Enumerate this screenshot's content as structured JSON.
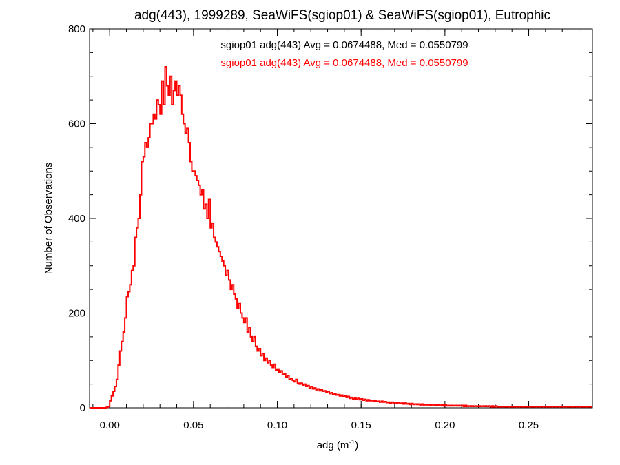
{
  "chart_data": {
    "type": "histogram",
    "title": "adg(443), 1999289, SeaWiFS(sgiop01) & SeaWiFS(sgiop01), Eutrophic",
    "xlabel": "adg (m",
    "xlabel_sup": "-1",
    "xlabel_close": ")",
    "ylabel": "Number of Observations",
    "xlim": [
      -0.012,
      0.288
    ],
    "ylim": [
      0,
      800
    ],
    "xticks": [
      0.0,
      0.05,
      0.1,
      0.15,
      0.2,
      0.25
    ],
    "xtick_labels": [
      "0.00",
      "0.05",
      "0.10",
      "0.15",
      "0.20",
      "0.25"
    ],
    "yticks": [
      0,
      200,
      400,
      600,
      800
    ],
    "ytick_labels": [
      "0",
      "200",
      "400",
      "600",
      "800"
    ],
    "grid": false,
    "legend": {
      "placement": "top-center",
      "entries": [
        {
          "text": "sgiop01 adg(443) Avg = 0.0674488, Med = 0.0550799",
          "color": "#000000"
        },
        {
          "text": "sgiop01 adg(443) Avg = 0.0674488, Med = 0.0550799",
          "color": "#ff0000"
        }
      ]
    },
    "series": [
      {
        "color": "#ff0000",
        "bin_width": 0.001,
        "bin_start": -0.012,
        "values": [
          0,
          0,
          0,
          0,
          0,
          0,
          0,
          0,
          0,
          0,
          1,
          3,
          15,
          25,
          35,
          45,
          60,
          90,
          120,
          140,
          160,
          190,
          235,
          245,
          260,
          290,
          300,
          360,
          380,
          400,
          450,
          520,
          530,
          560,
          550,
          570,
          600,
          600,
          620,
          610,
          650,
          640,
          620,
          690,
          640,
          720,
          680,
          660,
          700,
          640,
          670,
          690,
          660,
          680,
          660,
          620,
          600,
          580,
          590,
          560,
          520,
          500,
          500,
          490,
          480,
          470,
          450,
          460,
          420,
          430,
          400,
          440,
          380,
          390,
          360,
          350,
          340,
          330,
          320,
          310,
          300,
          280,
          290,
          270,
          250,
          260,
          240,
          230,
          210,
          220,
          200,
          190,
          180,
          190,
          160,
          170,
          150,
          140,
          150,
          130,
          120,
          125,
          110,
          115,
          100,
          105,
          95,
          100,
          90,
          85,
          92,
          80,
          82,
          75,
          78,
          70,
          72,
          65,
          68,
          60,
          62,
          58,
          55,
          60,
          52,
          50,
          52,
          48,
          50,
          45,
          47,
          42,
          45,
          40,
          42,
          38,
          40,
          36,
          38,
          35,
          36,
          33,
          35,
          30,
          32,
          28,
          30,
          27,
          28,
          25,
          27,
          24,
          25,
          22,
          24,
          20,
          22,
          19,
          21,
          18,
          20,
          17,
          19,
          16,
          18,
          15,
          17,
          15,
          16,
          14,
          15,
          13,
          14,
          12,
          14,
          12,
          13,
          11,
          12,
          10,
          12,
          10,
          11,
          9,
          11,
          9,
          10,
          8,
          10,
          8,
          9,
          7,
          9,
          7,
          8,
          7,
          8,
          6,
          8,
          6,
          7,
          6,
          7,
          5,
          7,
          5,
          6,
          5,
          6,
          5,
          6,
          4,
          6,
          4,
          5,
          4,
          5,
          4,
          5,
          4,
          5,
          4,
          5,
          3,
          5,
          3,
          4,
          3,
          4,
          3,
          4,
          3,
          4,
          3,
          4,
          3,
          4,
          3,
          4,
          2,
          4,
          2,
          4,
          2,
          3,
          2,
          3,
          2,
          3,
          2,
          3,
          2,
          3,
          2,
          3,
          2,
          3,
          2,
          3,
          2,
          3,
          2,
          3,
          2,
          3,
          2,
          3,
          2,
          3,
          2,
          3,
          2,
          3,
          2,
          3,
          2,
          3,
          2,
          3,
          2,
          3,
          2,
          3,
          2,
          3,
          2,
          3,
          2,
          3,
          2,
          3,
          2,
          3,
          2,
          3,
          2,
          3,
          2,
          3,
          2
        ]
      }
    ]
  }
}
